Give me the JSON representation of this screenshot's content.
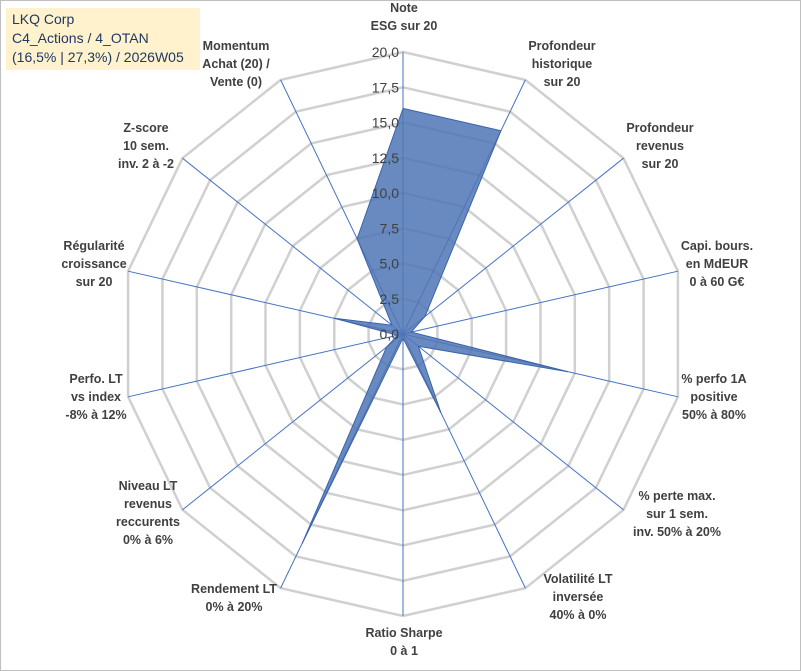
{
  "title": {
    "lines": [
      "LKQ Corp",
      "C4_Actions / 4_OTAN",
      "(16,5% | 27,3%) / 2026W05"
    ]
  },
  "chart_data": {
    "type": "radar",
    "r_range": [
      0,
      20
    ],
    "r_ticks": [
      "0,0",
      "2,5",
      "5,0",
      "7,5",
      "10,0",
      "12,5",
      "15,0",
      "17,5",
      "20,0"
    ],
    "grid": true,
    "categories": [
      [
        "Note",
        "ESG sur 20"
      ],
      [
        "Profondeur",
        "historique",
        "sur 20"
      ],
      [
        "Profondeur",
        "revenus",
        "sur 20"
      ],
      [
        "Capi. bours.",
        "en MdEUR",
        "0 à 60 G€"
      ],
      [
        "% perfo 1A",
        "positive",
        "50% à 80%"
      ],
      [
        "% perte max.",
        "sur 1 sem.",
        "inv. 50% à 20%"
      ],
      [
        "Volatilité LT",
        "inversée",
        "40% à 0%"
      ],
      [
        "Ratio Sharpe",
        "0 à 1"
      ],
      [
        "Rendement LT",
        "0% à 20%"
      ],
      [
        "Niveau LT",
        "revenus",
        "reccurents",
        "0% à 6%"
      ],
      [
        "Perfo. LT",
        "vs index",
        "-8% à 12%"
      ],
      [
        "Régularité",
        "croissance",
        "sur 20"
      ],
      [
        "Z-score",
        "10 sem.",
        "inv. 2 à -2"
      ],
      [
        "Momentum",
        "Achat (20) /",
        "Vente (0)"
      ]
    ],
    "series": [
      {
        "values": [
          16,
          16,
          2,
          0.6,
          12,
          1.4,
          6.2,
          0.3,
          16.5,
          1.5,
          0.4,
          5,
          1,
          7.5
        ],
        "color": "#4f75b5"
      }
    ]
  }
}
